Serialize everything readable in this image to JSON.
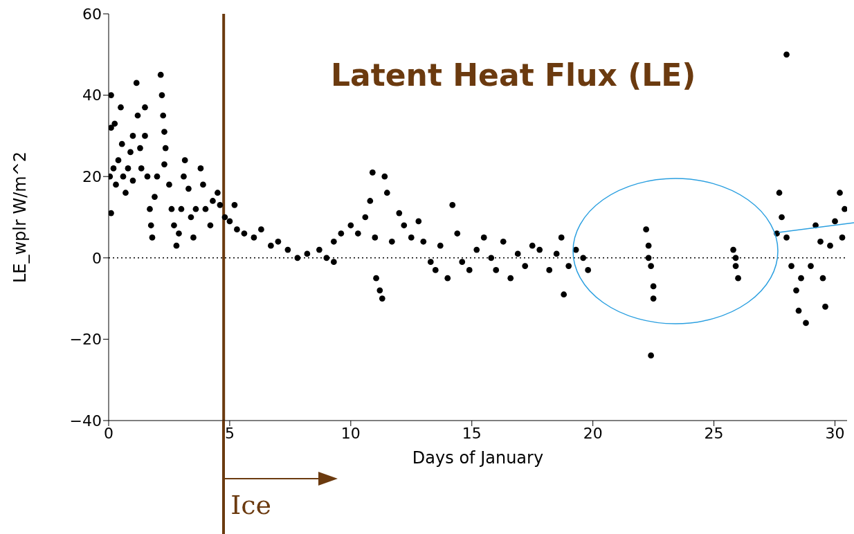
{
  "chart_data": {
    "type": "scatter",
    "title": "Latent Heat Flux (LE)",
    "xlabel": "Days of January",
    "ylabel": "LE_wplr W/m^2",
    "xlim": [
      0,
      30.5
    ],
    "xticks": [
      0,
      5,
      10,
      15,
      20,
      25,
      30
    ],
    "ylim": [
      -40,
      60
    ],
    "yticks": [
      -40,
      -20,
      0,
      20,
      40,
      60
    ],
    "grid": false,
    "legend": false,
    "marker": "circle",
    "annotations": [
      "Ice"
    ],
    "ref_lines": [
      {
        "axis": "x",
        "value": 4.75,
        "color": "#6b3a0f",
        "line_style": "solid"
      },
      {
        "axis": "y",
        "value": 0,
        "color": "#000000",
        "line_style": "dotted"
      }
    ],
    "series": [
      {
        "color": "#000000",
        "x": [
          0.1,
          0.1,
          0.05,
          0.1,
          0.2,
          0.25,
          0.3,
          0.4,
          0.5,
          0.55,
          0.6,
          0.7,
          0.8,
          0.9,
          1.0,
          1.0,
          1.15,
          1.2,
          1.3,
          1.35,
          1.5,
          1.5,
          1.6,
          1.7,
          1.75,
          1.8,
          1.9,
          2.0,
          2.15,
          2.2,
          2.25,
          2.3,
          2.35,
          2.3,
          2.5,
          2.6,
          2.7,
          2.8,
          2.9,
          3.0,
          3.1,
          3.15,
          3.3,
          3.4,
          3.5,
          3.6,
          3.8,
          3.9,
          4.0,
          4.2,
          4.3,
          4.5,
          4.6,
          4.8,
          5.0,
          5.2,
          5.3,
          5.6,
          6.0,
          6.3,
          6.7,
          7.0,
          7.4,
          7.8,
          8.2,
          8.7,
          9.0,
          9.3,
          9.3,
          9.6,
          10.0,
          10.3,
          10.6,
          10.8,
          10.9,
          11.0,
          11.05,
          11.2,
          11.3,
          11.4,
          11.5,
          11.7,
          12.0,
          12.2,
          12.5,
          12.8,
          13.0,
          13.3,
          13.5,
          13.7,
          14.0,
          14.2,
          14.4,
          14.6,
          14.9,
          15.2,
          15.5,
          15.8,
          16.0,
          16.3,
          16.6,
          16.9,
          17.2,
          17.5,
          17.8,
          18.2,
          18.5,
          18.7,
          18.8,
          19.0,
          19.3,
          19.6,
          19.8,
          22.2,
          22.3,
          22.3,
          22.4,
          22.5,
          22.5,
          22.4,
          25.8,
          25.9,
          25.9,
          26.0,
          27.6,
          27.7,
          27.8,
          28.0,
          28.0,
          28.2,
          28.4,
          28.5,
          28.6,
          28.8,
          29.0,
          29.2,
          29.4,
          29.5,
          29.6,
          29.8,
          30.0,
          30.2,
          30.4,
          30.3
        ],
        "values": [
          40,
          32,
          20,
          11,
          22,
          33,
          18,
          24,
          37,
          28,
          20,
          16,
          22,
          26,
          30,
          19,
          43,
          35,
          27,
          22,
          30,
          37,
          20,
          12,
          8,
          5,
          15,
          20,
          45,
          40,
          35,
          31,
          27,
          23,
          18,
          12,
          8,
          3,
          6,
          12,
          20,
          24,
          17,
          10,
          5,
          12,
          22,
          18,
          12,
          8,
          14,
          16,
          13,
          10,
          9,
          13,
          7,
          6,
          5,
          7,
          3,
          4,
          2,
          0,
          1,
          2,
          0,
          -1,
          4,
          6,
          8,
          6,
          10,
          14,
          21,
          5,
          -5,
          -8,
          -10,
          20,
          16,
          4,
          11,
          8,
          5,
          9,
          4,
          -1,
          -3,
          3,
          -5,
          13,
          6,
          -1,
          -3,
          2,
          5,
          0,
          -3,
          4,
          -5,
          1,
          -2,
          3,
          2,
          -3,
          1,
          5,
          -9,
          -2,
          2,
          0,
          -3,
          7,
          3,
          0,
          -2,
          -7,
          -10,
          -24,
          2,
          0,
          -2,
          -5,
          6,
          16,
          10,
          50,
          5,
          -2,
          -8,
          -13,
          -5,
          -16,
          -2,
          8,
          4,
          -5,
          -12,
          3,
          9,
          16,
          12,
          5
        ]
      }
    ]
  }
}
